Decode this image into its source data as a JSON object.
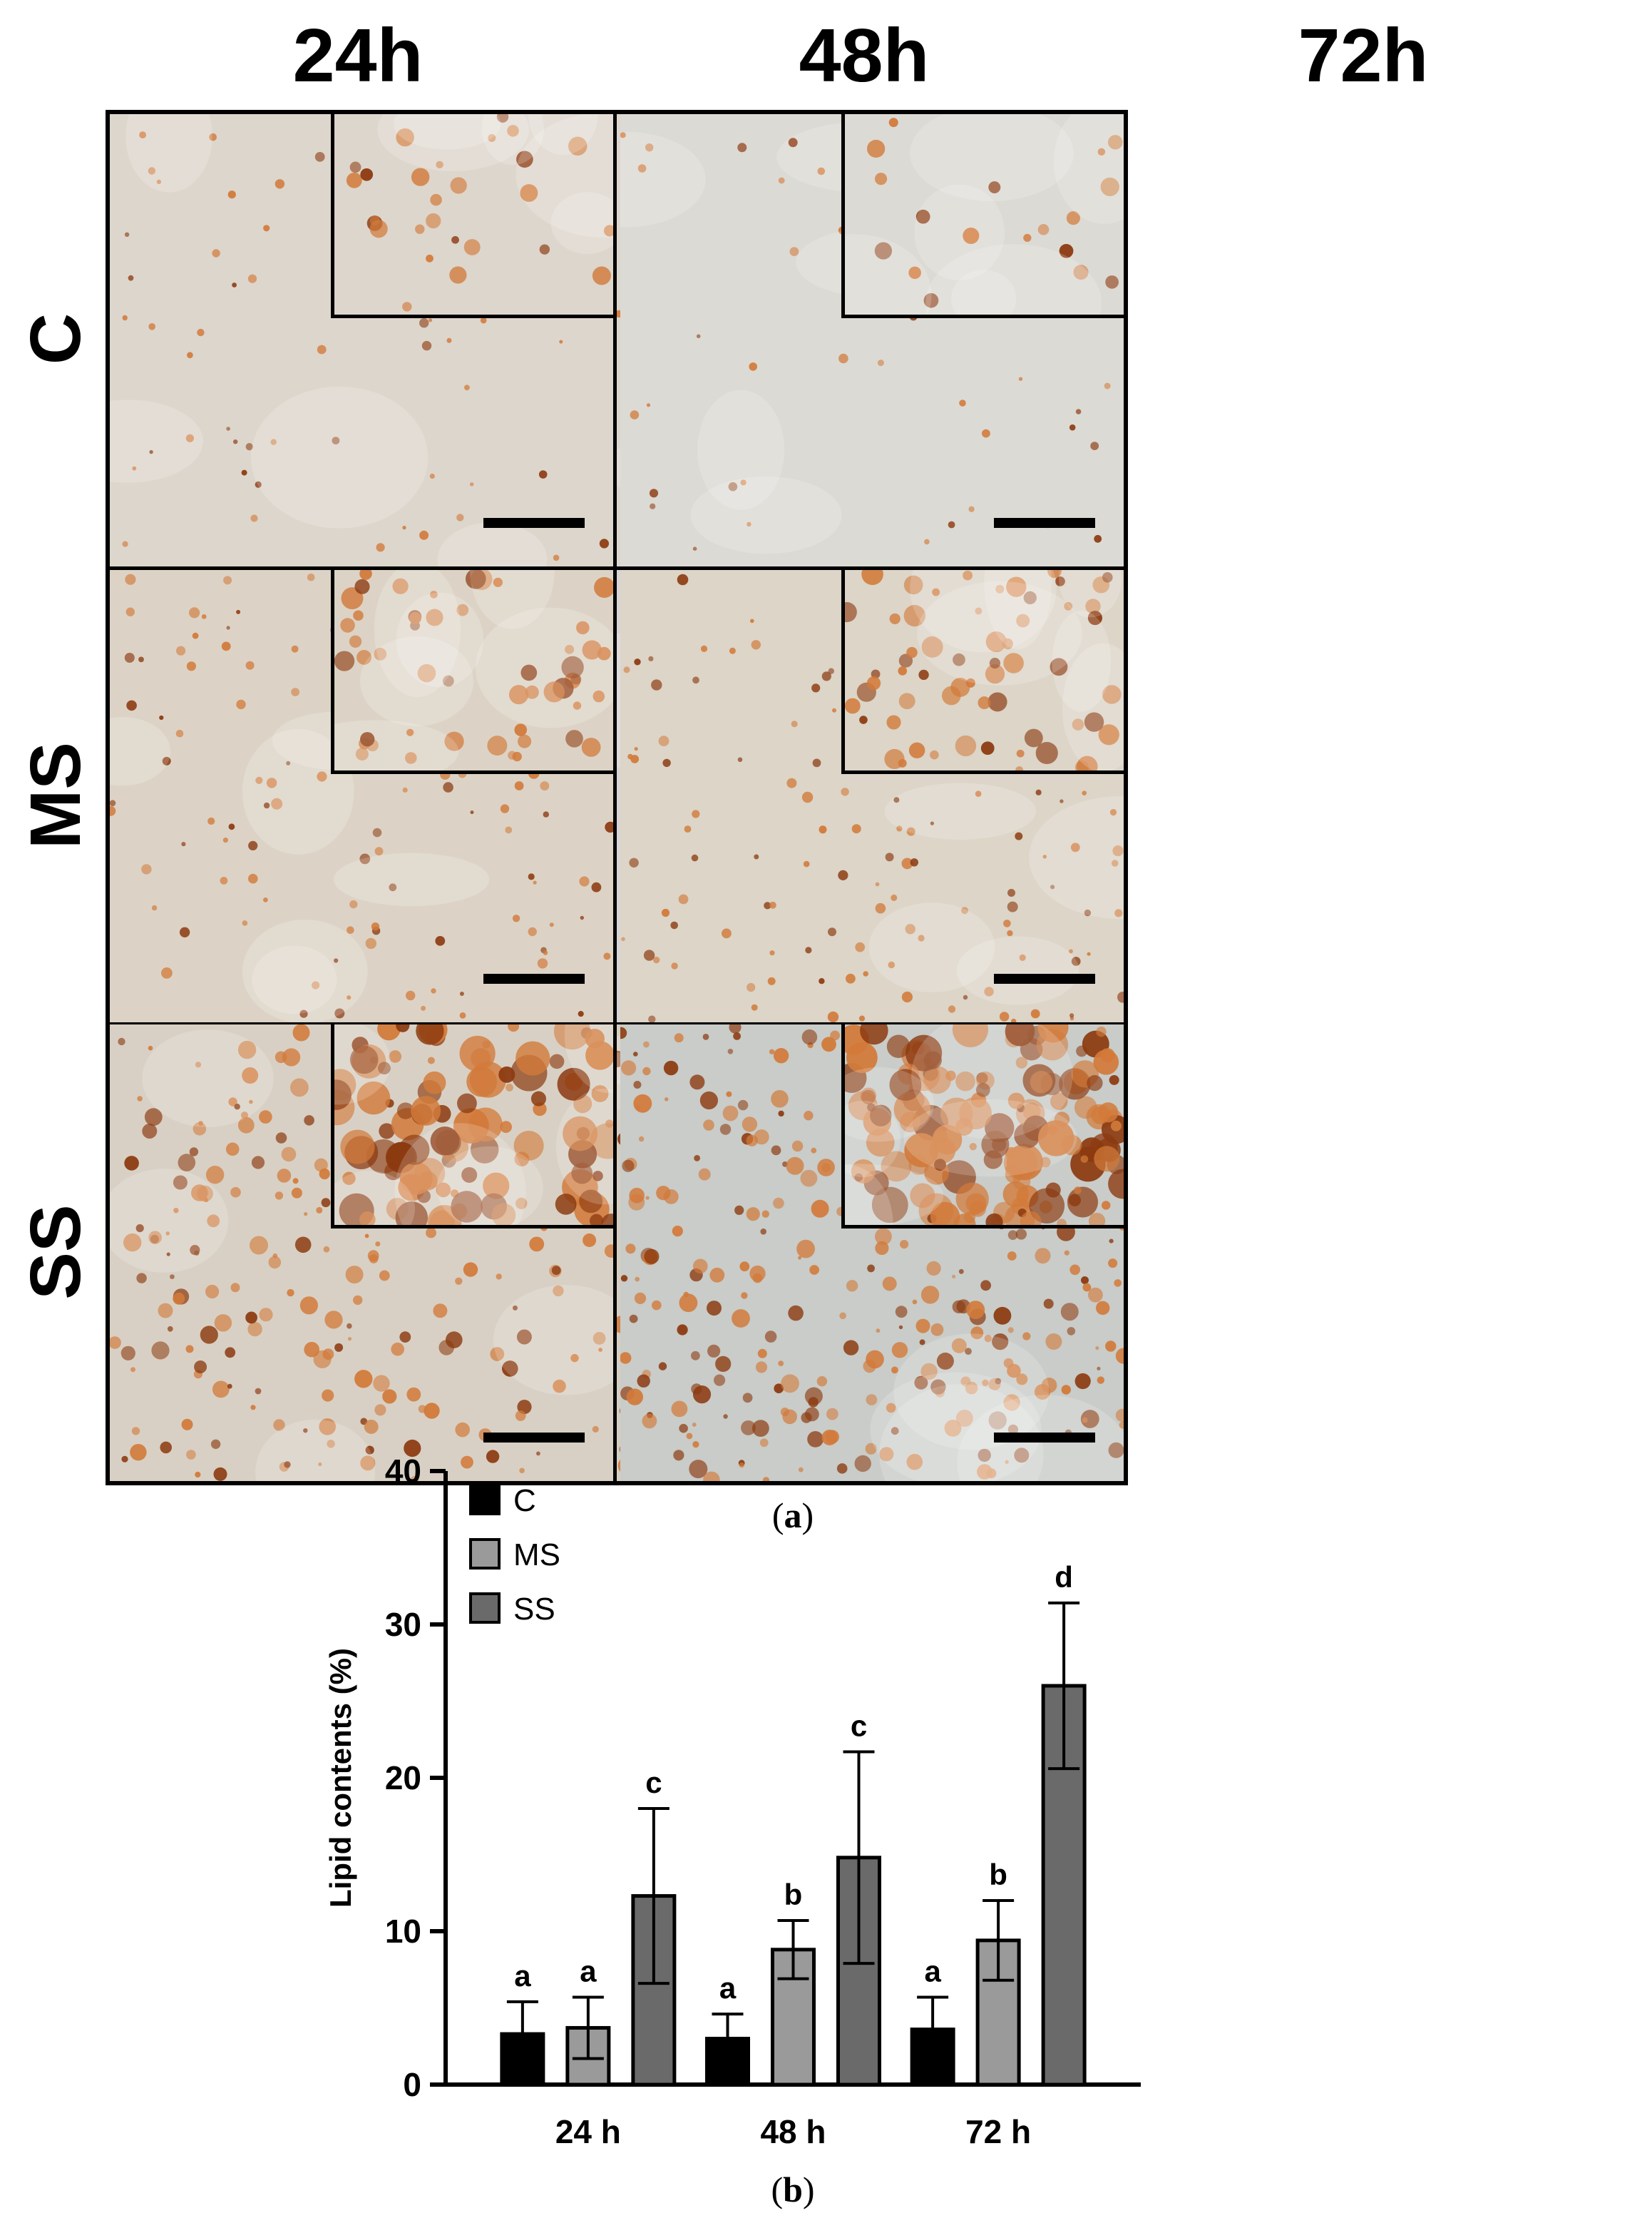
{
  "micrographs": {
    "columns": [
      "24h",
      "48h",
      "72h"
    ],
    "rows": [
      "C",
      "MS",
      "SS"
    ]
  },
  "panel_labels": {
    "a": "a",
    "b": "b"
  },
  "colors": {
    "C": "#000000",
    "MS": "#9a9a9a",
    "SS": "#6a6a6a",
    "stain_light": "#d27a3a",
    "stain_dark": "#8c3a10"
  },
  "chart_data": {
    "type": "bar",
    "categories": [
      "24 h",
      "48 h",
      "72 h"
    ],
    "series": [
      {
        "name": "C",
        "values": [
          3.3,
          3.0,
          3.6
        ],
        "errors": [
          2.1,
          1.6,
          2.1
        ],
        "letters": [
          "a",
          "a",
          "a"
        ]
      },
      {
        "name": "MS",
        "values": [
          3.7,
          8.8,
          9.4
        ],
        "errors": [
          2.0,
          1.9,
          2.6
        ],
        "letters": [
          "a",
          "b",
          "b"
        ]
      },
      {
        "name": "SS",
        "values": [
          12.3,
          14.8,
          26.0
        ],
        "errors": [
          5.7,
          6.9,
          5.4
        ],
        "letters": [
          "c",
          "c",
          "d"
        ]
      }
    ],
    "title": "",
    "xlabel": "",
    "ylabel": "Lipid contents (%)",
    "ylim": [
      0,
      40
    ],
    "yticks": [
      0,
      10,
      20,
      30,
      40
    ],
    "legend": "top-left",
    "grid": false
  }
}
